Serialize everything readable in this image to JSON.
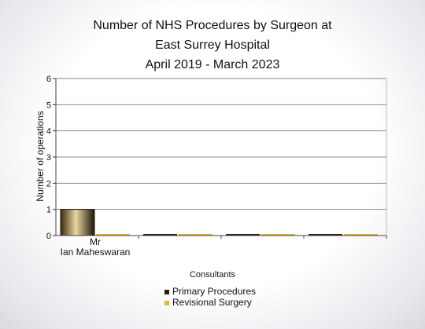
{
  "chart_data": {
    "type": "bar",
    "title_lines": [
      "Number of NHS Procedures by Surgeon at",
      "East Surrey Hospital",
      "April 2019 - March 2023"
    ],
    "xlabel": "Consultants",
    "ylabel": "Number of operations",
    "ylim": [
      0,
      6
    ],
    "yticks": [
      "0",
      "1",
      "2",
      "3",
      "4",
      "5",
      "6"
    ],
    "grid": true,
    "legend_position": "bottom",
    "categories": [
      "Mr\nIan Maheswaran",
      "",
      "",
      ""
    ],
    "series": [
      {
        "name": "Primary Procedures",
        "values": [
          1,
          0,
          0,
          0
        ],
        "color": "#2a1f0e"
      },
      {
        "name": "Revisional Surgery",
        "values": [
          0,
          0,
          0,
          0
        ],
        "color": "#e2b82b"
      }
    ]
  }
}
